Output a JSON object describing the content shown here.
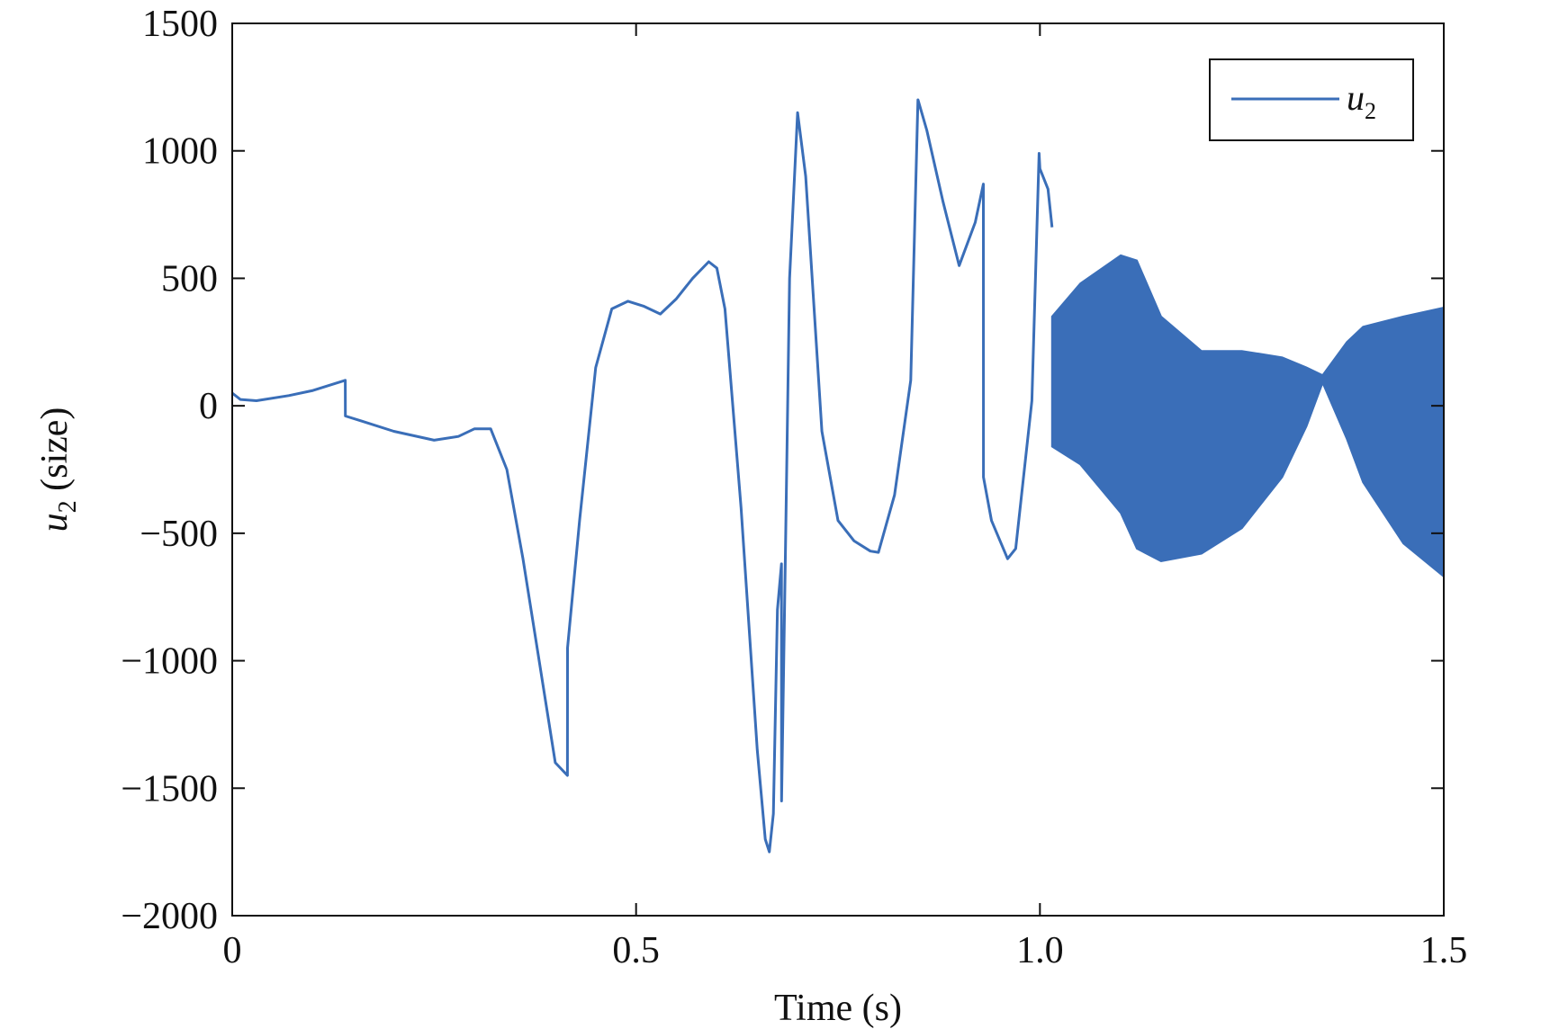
{
  "chart_data": {
    "type": "line",
    "xlabel": "Time (s)",
    "ylabel": {
      "var": "u",
      "sub": "2",
      "rest": " (size)"
    },
    "xlim": [
      0,
      1.5
    ],
    "ylim": [
      -2000,
      1500
    ],
    "xticks": [
      0,
      0.5,
      1.0,
      1.5
    ],
    "xtick_labels": [
      "0",
      "0.5",
      "1.0",
      "1.5"
    ],
    "yticks": [
      1500,
      1000,
      500,
      0,
      -500,
      -1000,
      -1500,
      -2000
    ],
    "ytick_labels": [
      "1500",
      "1000",
      "500",
      "0",
      "−500",
      "−1000",
      "−1500",
      "−2000"
    ],
    "grid": false,
    "legend_position": "top-right",
    "color": "#3a6eb8",
    "series": [
      {
        "name": {
          "var": "u",
          "sub": "2"
        },
        "x": [
          0,
          0.01,
          0.03,
          0.07,
          0.1,
          0.14,
          0.1401,
          0.16,
          0.2,
          0.25,
          0.28,
          0.3,
          0.32,
          0.34,
          0.36,
          0.38,
          0.4,
          0.415,
          0.4151,
          0.43,
          0.45,
          0.47,
          0.49,
          0.51,
          0.53,
          0.55,
          0.57,
          0.59,
          0.6,
          0.61,
          0.63,
          0.65,
          0.66,
          0.665,
          0.67,
          0.675,
          0.68,
          0.6801,
          0.685,
          0.69,
          0.7,
          0.71,
          0.72,
          0.73,
          0.75,
          0.77,
          0.79,
          0.8,
          0.82,
          0.84,
          0.849,
          0.8491,
          0.86,
          0.88,
          0.9,
          0.92,
          0.93,
          0.9301,
          0.94,
          0.96,
          0.97,
          0.99,
          0.999,
          1.0,
          1.01,
          1.015
        ],
        "y": [
          50,
          25,
          20,
          40,
          60,
          100,
          -40,
          -60,
          -100,
          -135,
          -120,
          -90,
          -90,
          -250,
          -600,
          -1000,
          -1400,
          -1450,
          -950,
          -450,
          150,
          380,
          410,
          390,
          360,
          420,
          500,
          565,
          540,
          380,
          -400,
          -1350,
          -1700,
          -1750,
          -1600,
          -800,
          -620,
          -1550,
          -550,
          500,
          1150,
          900,
          400,
          -100,
          -450,
          -530,
          -570,
          -575,
          -350,
          100,
          1200,
          1200,
          1080,
          800,
          550,
          720,
          870,
          -280,
          -450,
          -600,
          -560,
          20,
          990,
          930,
          850,
          700
        ],
        "band": {
          "x": [
            1.015,
            1.05,
            1.1,
            1.12,
            1.15,
            1.2,
            1.25,
            1.3,
            1.33,
            1.35,
            1.38,
            1.4,
            1.45,
            1.5
          ],
          "upper": [
            350,
            480,
            590,
            570,
            350,
            215,
            215,
            190,
            150,
            120,
            250,
            310,
            350,
            385
          ],
          "lower": [
            -160,
            -230,
            -420,
            -560,
            -610,
            -580,
            -480,
            -280,
            -80,
            90,
            -130,
            -300,
            -540,
            -670
          ]
        }
      }
    ]
  }
}
